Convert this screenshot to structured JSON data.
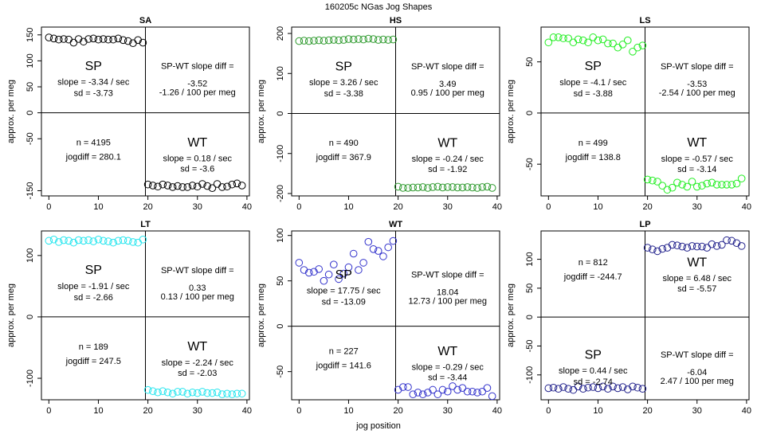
{
  "title": "160205c   NGas Jog Shapes",
  "x_label": "jog position",
  "chart_data": [
    {
      "type": "scatter",
      "title": "SA",
      "y_label": "approx. per meg",
      "color": "#000000",
      "x": [
        0,
        1,
        2,
        3,
        4,
        5,
        6,
        7,
        8,
        9,
        10,
        11,
        12,
        13,
        14,
        15,
        16,
        17,
        18,
        19,
        20,
        21,
        22,
        23,
        24,
        25,
        26,
        27,
        28,
        29,
        30,
        31,
        32,
        33,
        34,
        35,
        36,
        37,
        38,
        39
      ],
      "values": [
        145,
        143,
        141,
        142,
        141,
        135,
        142,
        137,
        142,
        143,
        141,
        142,
        141,
        141,
        143,
        140,
        138,
        134,
        140,
        135,
        -138,
        -140,
        -142,
        -138,
        -140,
        -143,
        -141,
        -143,
        -143,
        -140,
        -142,
        -137,
        -141,
        -145,
        -137,
        -143,
        -142,
        -138,
        -136,
        -140
      ],
      "xlim": [
        -1.5,
        40.5
      ],
      "xticks": [
        0,
        10,
        20,
        30,
        40
      ],
      "ylim": [
        -160,
        165
      ],
      "yticks": [
        -150,
        -50,
        0,
        50,
        100,
        150
      ],
      "annotations": {
        "sp": [
          "SP",
          "slope = -3.34 / sec",
          "sd = -3.73"
        ],
        "diff": [
          "SP-WT slope diff =",
          "-3.52",
          "-1.26 / 100 per meg"
        ],
        "stats": [
          "n = 4195",
          "jogdiff = 280.1"
        ],
        "wt": [
          "WT",
          "slope = 0.18 / sec",
          "sd = -3.6"
        ]
      }
    },
    {
      "type": "scatter",
      "title": "HS",
      "y_label": "approx. per meg",
      "color": "#2e9a2e",
      "x": [
        0,
        1,
        2,
        3,
        4,
        5,
        6,
        7,
        8,
        9,
        10,
        11,
        12,
        13,
        14,
        15,
        16,
        17,
        18,
        19,
        20,
        21,
        22,
        23,
        24,
        25,
        26,
        27,
        28,
        29,
        30,
        31,
        32,
        33,
        34,
        35,
        36,
        37,
        38,
        39
      ],
      "values": [
        181,
        182,
        181,
        182,
        183,
        182,
        183,
        184,
        183,
        184,
        186,
        185,
        186,
        185,
        187,
        186,
        184,
        185,
        184,
        185,
        -183,
        -186,
        -186,
        -185,
        -185,
        -184,
        -186,
        -184,
        -183,
        -185,
        -184,
        -184,
        -185,
        -185,
        -184,
        -185,
        -186,
        -184,
        -183,
        -186
      ],
      "xlim": [
        -1.5,
        40.5
      ],
      "xticks": [
        0,
        10,
        20,
        30,
        40
      ],
      "ylim": [
        -206,
        216
      ],
      "yticks": [
        -200,
        -100,
        0,
        100,
        200
      ],
      "annotations": {
        "sp": [
          "SP",
          "slope = 3.26 / sec",
          "sd = -3.38"
        ],
        "diff": [
          "SP-WT slope diff =",
          "3.49",
          "0.95 / 100 per meg"
        ],
        "stats": [
          "n = 490",
          "jogdiff = 367.9"
        ],
        "wt": [
          "WT",
          "slope = -0.24 / sec",
          "sd = -1.92"
        ]
      }
    },
    {
      "type": "scatter",
      "title": "LS",
      "y_label": "approx. per meg",
      "color": "#22ee22",
      "x": [
        0,
        1,
        2,
        3,
        4,
        5,
        6,
        7,
        8,
        9,
        10,
        11,
        12,
        13,
        14,
        15,
        16,
        17,
        18,
        19,
        20,
        21,
        22,
        23,
        24,
        25,
        26,
        27,
        28,
        29,
        30,
        31,
        32,
        33,
        34,
        35,
        36,
        37,
        38,
        39
      ],
      "values": [
        69,
        74,
        74,
        73,
        73,
        69,
        72,
        71,
        69,
        74,
        71,
        72,
        68,
        68,
        64,
        67,
        71,
        60,
        64,
        66,
        -65,
        -66,
        -67,
        -71,
        -75,
        -73,
        -68,
        -70,
        -72,
        -67,
        -72,
        -71,
        -69,
        -68,
        -70,
        -70,
        -70,
        -70,
        -69,
        -64
      ],
      "xlim": [
        -1.5,
        40.5
      ],
      "xticks": [
        0,
        10,
        20,
        30,
        40
      ],
      "ylim": [
        -81,
        84
      ],
      "yticks": [
        -50,
        0,
        50
      ],
      "annotations": {
        "sp": [
          "SP",
          "slope = -4.1 / sec",
          "sd = -3.88"
        ],
        "diff": [
          "SP-WT slope diff =",
          "-3.53",
          "-2.54 / 100 per meg"
        ],
        "stats": [
          "n = 499",
          "jogdiff = 138.8"
        ],
        "wt": [
          "WT",
          "slope = -0.57 / sec",
          "sd = -3.14"
        ]
      }
    },
    {
      "type": "scatter",
      "title": "LT",
      "y_label": "approx. per meg",
      "color": "#22e5ee",
      "x": [
        0,
        1,
        2,
        3,
        4,
        5,
        6,
        7,
        8,
        9,
        10,
        11,
        12,
        13,
        14,
        15,
        16,
        17,
        18,
        19,
        20,
        21,
        22,
        23,
        24,
        25,
        26,
        27,
        28,
        29,
        30,
        31,
        32,
        33,
        34,
        35,
        36,
        37,
        38,
        39
      ],
      "values": [
        124,
        126,
        122,
        125,
        124,
        121,
        125,
        124,
        125,
        123,
        126,
        124,
        123,
        121,
        124,
        125,
        124,
        122,
        121,
        126,
        -119,
        -121,
        -123,
        -121,
        -123,
        -125,
        -122,
        -122,
        -125,
        -123,
        -124,
        -122,
        -124,
        -124,
        -123,
        -126,
        -125,
        -126,
        -125,
        -125
      ],
      "xlim": [
        -1.5,
        40.5
      ],
      "xticks": [
        0,
        10,
        20,
        30,
        40
      ],
      "ylim": [
        -135,
        140
      ],
      "yticks": [
        -100,
        0,
        100
      ],
      "annotations": {
        "sp": [
          "SP",
          "slope = -1.91 / sec",
          "sd = -2.66"
        ],
        "diff": [
          "SP-WT slope diff =",
          "0.33",
          "0.13 / 100 per meg"
        ],
        "stats": [
          "n = 189",
          "jogdiff = 247.5"
        ],
        "wt": [
          "WT",
          "slope = -2.24 / sec",
          "sd = -2.03"
        ]
      }
    },
    {
      "type": "scatter",
      "title": "WT",
      "y_label": "approx. per meg",
      "color": "#3333cc",
      "x": [
        0,
        1,
        2,
        3,
        4,
        5,
        6,
        7,
        8,
        9,
        10,
        11,
        12,
        13,
        14,
        15,
        16,
        17,
        18,
        19,
        20,
        21,
        22,
        23,
        24,
        25,
        26,
        27,
        28,
        29,
        30,
        31,
        32,
        33,
        34,
        35,
        36,
        37,
        38,
        39
      ],
      "values": [
        70,
        62,
        59,
        60,
        63,
        50,
        57,
        68,
        52,
        58,
        65,
        80,
        62,
        70,
        93,
        85,
        83,
        77,
        87,
        94,
        -70,
        -67,
        -67,
        -75,
        -73,
        -75,
        -73,
        -70,
        -75,
        -70,
        -72,
        -66,
        -70,
        -68,
        -72,
        -72,
        -73,
        -72,
        -68,
        -77
      ],
      "xlim": [
        -1.5,
        40.5
      ],
      "xticks": [
        0,
        10,
        20,
        30,
        40
      ],
      "ylim": [
        -81,
        105
      ],
      "yticks": [
        -50,
        0,
        50,
        100
      ],
      "annotations": {
        "sp": [
          "SP",
          "slope = 17.75 / sec",
          "sd = -13.09"
        ],
        "diff": [
          "SP-WT slope diff =",
          "18.04",
          "12.73 / 100 per meg"
        ],
        "stats": [
          "n = 227",
          "jogdiff = 141.6"
        ],
        "wt": [
          "WT",
          "slope = -0.29 / sec",
          "sd = -3.44"
        ]
      }
    },
    {
      "type": "scatter",
      "title": "LP",
      "y_label": "approx. per meg",
      "color": "#22228c",
      "x": [
        0,
        1,
        2,
        3,
        4,
        5,
        6,
        7,
        8,
        9,
        10,
        11,
        12,
        13,
        14,
        15,
        16,
        17,
        18,
        19,
        20,
        21,
        22,
        23,
        24,
        25,
        26,
        27,
        28,
        29,
        30,
        31,
        32,
        33,
        34,
        35,
        36,
        37,
        38,
        39
      ],
      "values": [
        -123,
        -122,
        -124,
        -121,
        -124,
        -126,
        -120,
        -124,
        -122,
        -121,
        -123,
        -120,
        -124,
        -120,
        -123,
        -121,
        -125,
        -120,
        -122,
        -124,
        120,
        117,
        114,
        118,
        120,
        125,
        124,
        122,
        120,
        123,
        122,
        122,
        120,
        126,
        123,
        125,
        133,
        132,
        128,
        123
      ],
      "xlim": [
        -1.5,
        40.5
      ],
      "xticks": [
        0,
        10,
        20,
        30,
        40
      ],
      "ylim": [
        -143,
        149
      ],
      "yticks": [
        -100,
        -50,
        0,
        50,
        100
      ],
      "annotations": {
        "sp": [
          "SP",
          "slope = 0.44 / sec",
          "sd = -2.74"
        ],
        "diff": [
          "SP-WT slope diff =",
          "-6.04",
          "2.47 / 100 per meg"
        ],
        "stats": [
          "n = 812",
          "jogdiff = -244.7"
        ],
        "wt": [
          "WT",
          "slope = 6.48 / sec",
          "sd = -5.57"
        ]
      }
    }
  ]
}
